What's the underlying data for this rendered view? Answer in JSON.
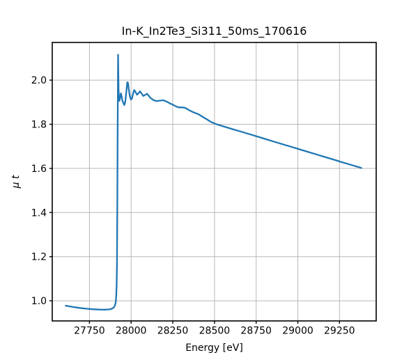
{
  "figure": {
    "background": "#ffffff"
  },
  "chart_data": {
    "type": "line",
    "title": "In-K_In2Te3_Si311_50ms_170616",
    "xlabel": "Energy [eV]",
    "ylabel": "μ t",
    "xlim": [
      27527,
      29470
    ],
    "ylim": [
      0.909,
      2.1705
    ],
    "x_ticks": [
      27750,
      28000,
      28250,
      28500,
      28750,
      29000,
      29250
    ],
    "x_tick_labels": [
      "27750",
      "28000",
      "28250",
      "28500",
      "28750",
      "29000",
      "29250"
    ],
    "y_ticks": [
      1.0,
      1.2,
      1.4,
      1.6,
      1.8,
      2.0
    ],
    "y_tick_labels": [
      "1.0",
      "1.2",
      "1.4",
      "1.6",
      "1.8",
      "2.0"
    ],
    "grid": true,
    "legend": null,
    "colors": {
      "line": "#1f77b4",
      "grid": "#b8b8b8",
      "spine": "#000000",
      "text": "#000000"
    },
    "series": [
      {
        "name": "mu_t_vs_energy",
        "x": [
          27608,
          27650,
          27690,
          27730,
          27770,
          27810,
          27845,
          27870,
          27885,
          27896,
          27903,
          27908,
          27911,
          27913,
          27915,
          27917,
          27919,
          27921,
          27922,
          27923.5,
          27925,
          27927,
          27930,
          27934,
          27939,
          27944,
          27948,
          27953,
          27959,
          27965,
          27972,
          27977,
          27981,
          27987,
          27993,
          27999,
          28005,
          28012,
          28019,
          28027,
          28035,
          28044,
          28053,
          28063,
          28073,
          28084,
          28095,
          28105,
          28118,
          28135,
          28152,
          28172,
          28192,
          28212,
          28232,
          28252,
          28272,
          28288,
          28308,
          28325,
          28345,
          28365,
          28385,
          28405,
          28430,
          28455,
          28480,
          28510,
          28560,
          28610,
          28660,
          28710,
          28760,
          28810,
          28860,
          28910,
          28960,
          29010,
          29060,
          29110,
          29160,
          29210,
          29260,
          29310,
          29350,
          29381
        ],
        "y": [
          0.978,
          0.9725,
          0.968,
          0.9645,
          0.962,
          0.9605,
          0.9602,
          0.9615,
          0.9645,
          0.97,
          0.979,
          0.995,
          1.025,
          1.07,
          1.16,
          1.38,
          1.72,
          2.0,
          2.115,
          2.02,
          1.958,
          1.925,
          1.906,
          1.921,
          1.94,
          1.923,
          1.905,
          1.898,
          1.887,
          1.901,
          1.952,
          1.99,
          1.988,
          1.953,
          1.925,
          1.912,
          1.916,
          1.94,
          1.955,
          1.945,
          1.934,
          1.94,
          1.949,
          1.939,
          1.928,
          1.933,
          1.938,
          1.93,
          1.918,
          1.909,
          1.905,
          1.907,
          1.909,
          1.903,
          1.895,
          1.888,
          1.88,
          1.876,
          1.8765,
          1.874,
          1.865,
          1.857,
          1.851,
          1.845,
          1.833,
          1.822,
          1.81,
          1.8005,
          1.789,
          1.7777,
          1.7663,
          1.755,
          1.7435,
          1.732,
          1.7206,
          1.709,
          1.698,
          1.6864,
          1.675,
          1.6636,
          1.652,
          1.641,
          1.6293,
          1.618,
          1.609,
          1.602
        ]
      }
    ]
  }
}
